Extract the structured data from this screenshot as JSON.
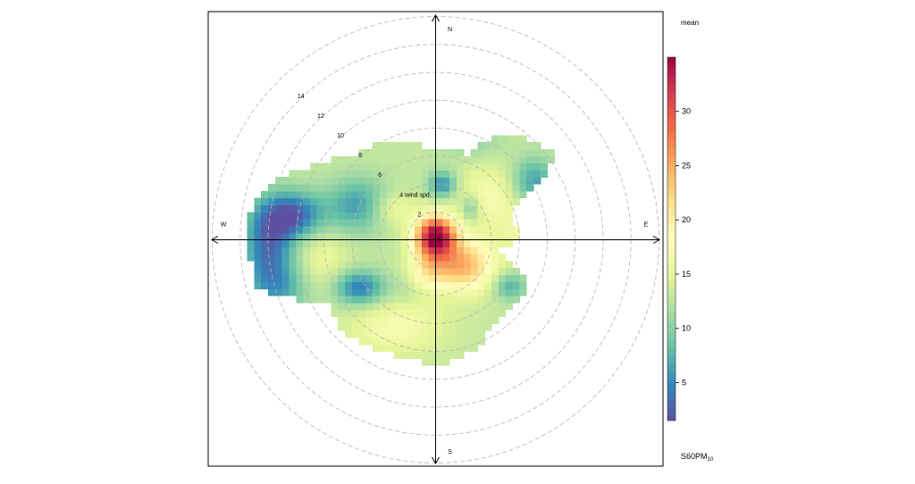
{
  "chart_data": {
    "type": "heatmap",
    "subtype": "polar-plot",
    "statistic_label": "mean",
    "pollutant": {
      "main": "S60PM",
      "sub": "10"
    },
    "compass": {
      "north": "N",
      "south": "S",
      "east": "E",
      "west": "W"
    },
    "radial_axis": {
      "units_label": "wind spd.",
      "tick_values": [
        2,
        4,
        6,
        8,
        10,
        12,
        14
      ],
      "tick_labels": [
        "2",
        "4",
        "6",
        "8",
        "10",
        "12",
        "14"
      ],
      "max": 16,
      "origin_label": "0"
    },
    "color_scale": {
      "min": 1.5,
      "max": 35,
      "tick_values": [
        5,
        10,
        15,
        20,
        25,
        30
      ],
      "tick_labels": [
        "5",
        "10",
        "15",
        "20",
        "25",
        "30"
      ],
      "colors": [
        "#5E4FA2",
        "#3288BD",
        "#66C2A5",
        "#ABDDA4",
        "#E6F598",
        "#FFFFBF",
        "#FEE08B",
        "#FDAE61",
        "#F46D43",
        "#D53E4F",
        "#9E0142"
      ]
    },
    "grid": true,
    "legend_position": "right",
    "field": {
      "grid_step_ws": 0.5,
      "default_value": 13,
      "components": [
        {
          "u": 0.0,
          "v": 0.3,
          "sx": 1.0,
          "sy": 1.0,
          "a": 22
        },
        {
          "u": 1.8,
          "v": -1.8,
          "sx": 1.6,
          "sy": 1.3,
          "a": 12
        },
        {
          "u": -0.6,
          "v": -2.2,
          "sx": 0.9,
          "sy": 1.3,
          "a": 5
        },
        {
          "u": 3.8,
          "v": 3.2,
          "sx": 1.7,
          "sy": 1.5,
          "a": 4
        },
        {
          "u": -3.2,
          "v": 2.2,
          "sx": 1.2,
          "sy": 0.9,
          "a": 4
        },
        {
          "u": 6.3,
          "v": 0.6,
          "sx": 1.2,
          "sy": 1.2,
          "a": 3
        },
        {
          "u": -8.2,
          "v": -1.5,
          "sx": 1.4,
          "sy": 1.8,
          "a": 3
        },
        {
          "u": -2.8,
          "v": -6.2,
          "sx": 2.4,
          "sy": 1.4,
          "a": 4
        },
        {
          "u": -10.2,
          "v": 1.8,
          "sx": 1.6,
          "sy": 1.2,
          "a": -10
        },
        {
          "u": -12.0,
          "v": -0.5,
          "sx": 1.3,
          "sy": 2.2,
          "a": -9
        },
        {
          "u": -11.0,
          "v": -3.5,
          "sx": 1.6,
          "sy": 1.4,
          "a": -5
        },
        {
          "u": -5.5,
          "v": 2.5,
          "sx": 1.6,
          "sy": 1.4,
          "a": -7
        },
        {
          "u": -5.5,
          "v": -3.4,
          "sx": 1.3,
          "sy": 0.9,
          "a": -9
        },
        {
          "u": 0.5,
          "v": 4.0,
          "sx": 0.7,
          "sy": 0.7,
          "a": -8
        },
        {
          "u": 2.5,
          "v": 2.3,
          "sx": 0.5,
          "sy": 0.7,
          "a": -5
        },
        {
          "u": 5.3,
          "v": -3.3,
          "sx": 0.8,
          "sy": 0.7,
          "a": -6
        },
        {
          "u": 7.0,
          "v": 4.2,
          "sx": 1.1,
          "sy": 1.2,
          "a": -7
        },
        {
          "u": 2.5,
          "v": 7.3,
          "sx": 1.5,
          "sy": 1.0,
          "a": -3
        },
        {
          "u": -1.0,
          "v": -3.6,
          "sx": 1.6,
          "sy": 0.7,
          "a": -2
        }
      ],
      "boundary": [
        {
          "deg": 0,
          "ws": 6.3
        },
        {
          "deg": 20,
          "ws": 6.6
        },
        {
          "deg": 35,
          "ws": 9.5
        },
        {
          "deg": 55,
          "ws": 10.5
        },
        {
          "deg": 70,
          "ws": 5.5
        },
        {
          "deg": 85,
          "ws": 6.0
        },
        {
          "deg": 100,
          "ws": 4.6
        },
        {
          "deg": 115,
          "ws": 7.3
        },
        {
          "deg": 145,
          "ws": 7.3
        },
        {
          "deg": 170,
          "ws": 8.8
        },
        {
          "deg": 200,
          "ws": 8.8
        },
        {
          "deg": 225,
          "ws": 9.3
        },
        {
          "deg": 240,
          "ws": 9.0
        },
        {
          "deg": 255,
          "ws": 13.2
        },
        {
          "deg": 270,
          "ws": 13.5
        },
        {
          "deg": 283,
          "ws": 13.3
        },
        {
          "deg": 300,
          "ws": 10.5
        },
        {
          "deg": 315,
          "ws": 8.5
        },
        {
          "deg": 340,
          "ws": 7.5
        },
        {
          "deg": 360,
          "ws": 6.3
        }
      ]
    }
  }
}
